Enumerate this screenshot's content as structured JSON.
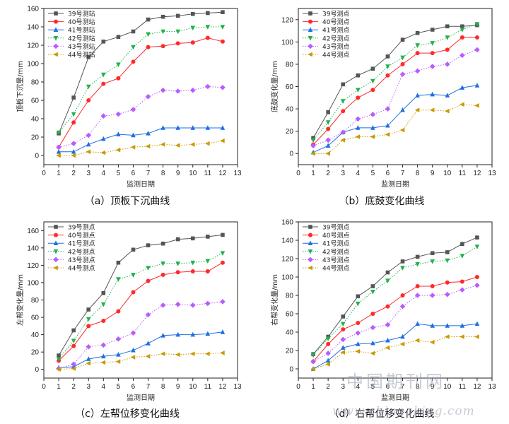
{
  "watermark": {
    "cn": "中国期刊网",
    "url": "www.chinaqking.com"
  },
  "chart_data": [
    {
      "type": "line",
      "caption": "（a）顶板下沉曲线",
      "xlabel": "监测日期",
      "ylabel": "顶板下沉量/mm",
      "xlim": [
        0,
        13
      ],
      "ylim": [
        -10,
        160
      ],
      "xticks": [
        0,
        1,
        2,
        3,
        4,
        5,
        6,
        7,
        8,
        9,
        10,
        11,
        12,
        13
      ],
      "yticks": [
        0,
        20,
        40,
        60,
        80,
        100,
        120,
        140,
        160
      ],
      "legend_position": "top-left",
      "x": [
        1,
        2,
        3,
        4,
        5,
        6,
        7,
        8,
        9,
        10,
        11,
        12
      ],
      "series": [
        {
          "name": "39号测站",
          "color": "#555555",
          "marker": "square",
          "dash": "solid",
          "values": [
            24,
            63,
            107,
            124,
            129,
            135,
            148,
            151,
            152,
            154,
            155,
            156
          ]
        },
        {
          "name": "40号测站",
          "color": "#ff2a2a",
          "marker": "circle",
          "dash": "solid",
          "values": [
            9,
            36,
            60,
            78,
            84,
            102,
            118,
            119,
            122,
            123,
            128,
            124
          ]
        },
        {
          "name": "41号测站",
          "color": "#1f6fe0",
          "marker": "triangle-up",
          "dash": "solid",
          "values": [
            4,
            4,
            12,
            18,
            23,
            22,
            24,
            30,
            30,
            30,
            30,
            30
          ]
        },
        {
          "name": "42号测站",
          "color": "#22b14c",
          "marker": "triangle-down",
          "dash": "dotted",
          "values": [
            25,
            45,
            75,
            88,
            99,
            118,
            132,
            135,
            135,
            139,
            140,
            140
          ]
        },
        {
          "name": "43号测站",
          "color": "#b85cff",
          "marker": "diamond",
          "dash": "dotted",
          "values": [
            9,
            13,
            22,
            43,
            45,
            50,
            64,
            71,
            70,
            71,
            75,
            74
          ]
        },
        {
          "name": "44号测站",
          "color": "#c89a00",
          "marker": "triangle-left",
          "dash": "dotted",
          "values": [
            0,
            0,
            4,
            3,
            6,
            9,
            10,
            12,
            11,
            12,
            13,
            16
          ]
        }
      ]
    },
    {
      "type": "line",
      "caption": "（b）底鼓变化曲线",
      "xlabel": "监测日期",
      "ylabel": "底鼓变化量/mm",
      "xlim": [
        0,
        13
      ],
      "ylim": [
        -10,
        130
      ],
      "xticks": [
        0,
        1,
        2,
        3,
        4,
        5,
        6,
        7,
        8,
        9,
        10,
        11,
        12,
        13
      ],
      "yticks": [
        0,
        20,
        40,
        60,
        80,
        100,
        120
      ],
      "legend_position": "top-left",
      "x": [
        1,
        2,
        3,
        4,
        5,
        6,
        7,
        8,
        9,
        10,
        11,
        12
      ],
      "series": [
        {
          "name": "39号测点",
          "color": "#555555",
          "marker": "square",
          "dash": "solid",
          "values": [
            14,
            37,
            62,
            70,
            76,
            87,
            102,
            108,
            111,
            114,
            114,
            115
          ]
        },
        {
          "name": "40号测点",
          "color": "#ff2a2a",
          "marker": "circle",
          "dash": "solid",
          "values": [
            8,
            22,
            38,
            50,
            57,
            70,
            80,
            90,
            90,
            93,
            104,
            104
          ]
        },
        {
          "name": "41号测点",
          "color": "#1f6fe0",
          "marker": "triangle-up",
          "dash": "solid",
          "values": [
            1,
            7,
            19,
            23,
            23,
            25,
            39,
            52,
            53,
            52,
            59,
            61
          ]
        },
        {
          "name": "42号测点",
          "color": "#22b14c",
          "marker": "triangle-down",
          "dash": "dotted",
          "values": [
            12,
            28,
            47,
            57,
            65,
            78,
            86,
            97,
            99,
            104,
            111,
            116
          ]
        },
        {
          "name": "43号测点",
          "color": "#b85cff",
          "marker": "diamond",
          "dash": "dotted",
          "values": [
            7,
            12,
            19,
            31,
            35,
            40,
            71,
            74,
            78,
            80,
            88,
            93
          ]
        },
        {
          "name": "44号测点",
          "color": "#c89a00",
          "marker": "triangle-left",
          "dash": "dotted",
          "values": [
            0,
            0,
            12,
            15,
            15,
            17,
            21,
            39,
            39,
            38,
            44,
            43
          ]
        }
      ]
    },
    {
      "type": "line",
      "caption": "（c）左帮位移变化曲线",
      "xlabel": "监测日期",
      "ylabel": "左帮变化量/mm",
      "xlim": [
        0,
        13
      ],
      "ylim": [
        -10,
        170
      ],
      "xticks": [
        0,
        1,
        2,
        3,
        4,
        5,
        6,
        7,
        8,
        9,
        10,
        11,
        12,
        13
      ],
      "yticks": [
        0,
        20,
        40,
        60,
        80,
        100,
        120,
        140,
        160
      ],
      "legend_position": "top-left",
      "x": [
        1,
        2,
        3,
        4,
        5,
        6,
        7,
        8,
        9,
        10,
        11,
        12
      ],
      "series": [
        {
          "name": "39号测点",
          "color": "#555555",
          "marker": "square",
          "dash": "solid",
          "values": [
            16,
            45,
            69,
            88,
            123,
            138,
            143,
            145,
            150,
            151,
            153,
            155
          ]
        },
        {
          "name": "40号测点",
          "color": "#ff2a2a",
          "marker": "circle",
          "dash": "solid",
          "values": [
            10,
            27,
            50,
            56,
            67,
            89,
            102,
            109,
            112,
            113,
            113,
            123
          ]
        },
        {
          "name": "41号测点",
          "color": "#1f6fe0",
          "marker": "triangle-up",
          "dash": "solid",
          "values": [
            2,
            3,
            12,
            15,
            17,
            22,
            30,
            39,
            40,
            40,
            41,
            43
          ]
        },
        {
          "name": "42号测点",
          "color": "#22b14c",
          "marker": "triangle-down",
          "dash": "dotted",
          "values": [
            12,
            33,
            58,
            75,
            104,
            109,
            117,
            122,
            122,
            123,
            125,
            134
          ]
        },
        {
          "name": "43号测点",
          "color": "#b85cff",
          "marker": "diamond",
          "dash": "dotted",
          "values": [
            1,
            6,
            26,
            28,
            35,
            42,
            63,
            74,
            75,
            74,
            76,
            78
          ]
        },
        {
          "name": "44号测点",
          "color": "#c89a00",
          "marker": "triangle-left",
          "dash": "dotted",
          "values": [
            0,
            1,
            7,
            8,
            9,
            14,
            15,
            18,
            17,
            18,
            18,
            19
          ]
        }
      ]
    },
    {
      "type": "line",
      "caption": "（d）右帮位移变化曲线",
      "xlabel": "监测日期",
      "ylabel": "右帮变化量/mm",
      "xlim": [
        0,
        13
      ],
      "ylim": [
        -10,
        160
      ],
      "xticks": [
        0,
        1,
        2,
        3,
        4,
        5,
        6,
        7,
        8,
        9,
        10,
        11,
        12,
        13
      ],
      "yticks": [
        0,
        20,
        40,
        60,
        80,
        100,
        120,
        140,
        160
      ],
      "legend_position": "top-left",
      "x": [
        1,
        2,
        3,
        4,
        5,
        6,
        7,
        8,
        9,
        10,
        11,
        12
      ],
      "series": [
        {
          "name": "39号测点",
          "color": "#555555",
          "marker": "square",
          "dash": "solid",
          "values": [
            16,
            35,
            57,
            79,
            90,
            105,
            117,
            122,
            126,
            127,
            136,
            143
          ]
        },
        {
          "name": "40号测点",
          "color": "#ff2a2a",
          "marker": "circle",
          "dash": "solid",
          "values": [
            8,
            27,
            43,
            50,
            60,
            68,
            80,
            90,
            90,
            94,
            95,
            100
          ]
        },
        {
          "name": "41号测点",
          "color": "#1f6fe0",
          "marker": "triangle-up",
          "dash": "solid",
          "values": [
            0,
            9,
            23,
            27,
            28,
            31,
            35,
            49,
            47,
            47,
            47,
            49
          ]
        },
        {
          "name": "42号测点",
          "color": "#22b14c",
          "marker": "triangle-down",
          "dash": "dotted",
          "values": [
            15,
            33,
            49,
            71,
            84,
            96,
            110,
            114,
            117,
            118,
            123,
            133
          ]
        },
        {
          "name": "43号测点",
          "color": "#b85cff",
          "marker": "diamond",
          "dash": "dotted",
          "values": [
            8,
            17,
            32,
            39,
            45,
            48,
            68,
            80,
            80,
            81,
            86,
            91
          ]
        },
        {
          "name": "44号测点",
          "color": "#c89a00",
          "marker": "triangle-left",
          "dash": "dotted",
          "values": [
            0,
            5,
            18,
            19,
            17,
            23,
            27,
            31,
            29,
            35,
            35,
            35
          ]
        }
      ]
    }
  ]
}
